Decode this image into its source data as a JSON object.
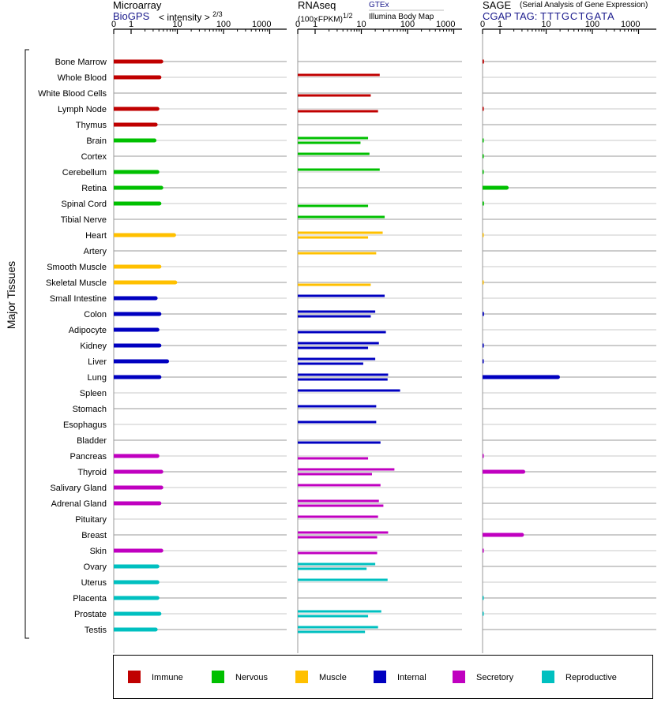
{
  "chart_data": {
    "type": "bar",
    "ylabel": "Major Tissues",
    "categories": [
      "Bone Marrow",
      "Whole Blood",
      "White Blood Cells",
      "Lymph Node",
      "Thymus",
      "Brain",
      "Cortex",
      "Cerebellum",
      "Retina",
      "Spinal Cord",
      "Tibial Nerve",
      "Heart",
      "Artery",
      "Smooth Muscle",
      "Skeletal Muscle",
      "Small Intestine",
      "Colon",
      "Adipocyte",
      "Kidney",
      "Liver",
      "Lung",
      "Spleen",
      "Stomach",
      "Esophagus",
      "Bladder",
      "Pancreas",
      "Thyroid",
      "Salivary Gland",
      "Adrenal Gland",
      "Pituitary",
      "Breast",
      "Skin",
      "Ovary",
      "Uterus",
      "Placenta",
      "Prostate",
      "Testis"
    ],
    "groups": [
      "Immune",
      "Immune",
      "Immune",
      "Immune",
      "Immune",
      "Nervous",
      "Nervous",
      "Nervous",
      "Nervous",
      "Nervous",
      "Nervous",
      "Muscle",
      "Muscle",
      "Muscle",
      "Muscle",
      "Internal",
      "Internal",
      "Internal",
      "Internal",
      "Internal",
      "Internal",
      "Internal",
      "Internal",
      "Internal",
      "Internal",
      "Secretory",
      "Secretory",
      "Secretory",
      "Secretory",
      "Secretory",
      "Secretory",
      "Secretory",
      "Reproductive",
      "Reproductive",
      "Reproductive",
      "Reproductive",
      "Reproductive"
    ],
    "legend": [
      {
        "name": "Immune",
        "color": "#c00000"
      },
      {
        "name": "Nervous",
        "color": "#00c000"
      },
      {
        "name": "Muscle",
        "color": "#ffc000"
      },
      {
        "name": "Internal",
        "color": "#0000c0"
      },
      {
        "name": "Secretory",
        "color": "#c000c0"
      },
      {
        "name": "Reproductive",
        "color": "#00c0c0"
      }
    ],
    "panels": [
      {
        "title": "Microarray",
        "source": "BioGPS",
        "scale_label": "< intensity >",
        "scale_exp": "2/3",
        "ticks": [
          0,
          1,
          10,
          100,
          1000
        ],
        "xlim": [
          0,
          1000
        ],
        "series": [
          {
            "name": "BioGPS",
            "values": [
              4.5,
              4.1,
              null,
              3.7,
              3.4,
              3.2,
              null,
              3.7,
              4.5,
              4.1,
              null,
              8.5,
              null,
              4.1,
              9.0,
              3.4,
              4.1,
              3.7,
              4.1,
              6.0,
              4.1,
              null,
              null,
              null,
              null,
              3.7,
              4.5,
              4.5,
              4.1,
              null,
              null,
              4.5,
              3.7,
              3.7,
              3.7,
              4.1,
              3.4
            ]
          }
        ]
      },
      {
        "title": "RNAseq",
        "scale_label": "(100×FPKM)",
        "scale_exp": "1/2",
        "source": "GTEx",
        "source2": "Illumina Body Map",
        "ticks": [
          0,
          1,
          10,
          100,
          1000
        ],
        "xlim": [
          0,
          1000
        ],
        "series": [
          {
            "name": "GTEx",
            "values": [
              null,
              25,
              null,
              null,
              null,
              14,
              15,
              25,
              null,
              null,
              32,
              29,
              null,
              null,
              null,
              32,
              20,
              null,
              24,
              20,
              38,
              69,
              21,
              21,
              null,
              null,
              52,
              26,
              24,
              23,
              38,
              null,
              20,
              37,
              null,
              27,
              23
            ]
          },
          {
            "name": "Illumina Body Map",
            "values": [
              null,
              null,
              16,
              23,
              null,
              9.6,
              null,
              null,
              null,
              14,
              null,
              14,
              21,
              null,
              16,
              null,
              16,
              34,
              14,
              11,
              37,
              null,
              null,
              null,
              26,
              14,
              17,
              null,
              30,
              null,
              22,
              22,
              13,
              null,
              null,
              14,
              12
            ]
          }
        ]
      },
      {
        "title": "SAGE",
        "subtitle": "(Serial Analysis of Gene Expression)",
        "source": "CGAP",
        "tag_label": "TAG:",
        "tag": "TTTGCTGATA",
        "ticks": [
          0,
          1,
          10,
          100,
          1000
        ],
        "xlim": [
          0,
          1000
        ],
        "series": [
          {
            "name": "SAGE",
            "values": [
              0.08,
              null,
              null,
              0.07,
              null,
              0.04,
              0.03,
              0.03,
              1.4,
              0.08,
              null,
              0.02,
              null,
              null,
              0.03,
              null,
              0.08,
              null,
              0.07,
              0.06,
              18,
              null,
              null,
              null,
              null,
              0.05,
              3.2,
              null,
              null,
              null,
              3.0,
              0.07,
              null,
              null,
              0.05,
              0.05,
              null
            ]
          }
        ]
      }
    ]
  }
}
